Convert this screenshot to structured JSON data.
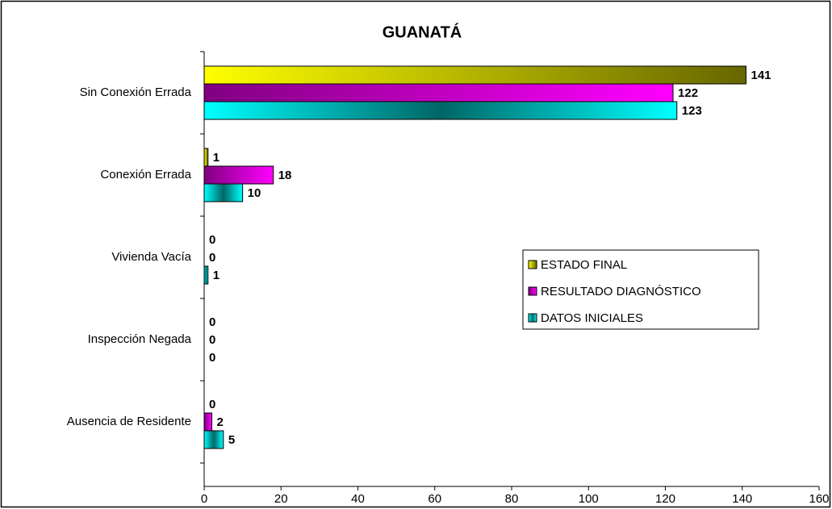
{
  "chart_data": {
    "type": "barh",
    "title": "GUANATÁ",
    "categories": [
      "Sin Conexión Errada",
      "Conexión Errada",
      "Vivienda Vacía",
      "Inspección Negada",
      "Ausencia de Residente"
    ],
    "series": [
      {
        "name": "ESTADO FINAL",
        "color": "#ffff00",
        "values": [
          141,
          1,
          0,
          0,
          0
        ]
      },
      {
        "name": "RESULTADO DIAGNÓSTICO",
        "color": "#ff00ff",
        "values": [
          122,
          18,
          0,
          0,
          2
        ]
      },
      {
        "name": "DATOS INICIALES",
        "color": "#00ffff",
        "values": [
          123,
          10,
          1,
          0,
          5
        ]
      }
    ],
    "xlim": [
      0,
      160
    ],
    "xticks": [
      0,
      20,
      40,
      60,
      80,
      100,
      120,
      140,
      160
    ],
    "legend": "right",
    "grid": false
  }
}
